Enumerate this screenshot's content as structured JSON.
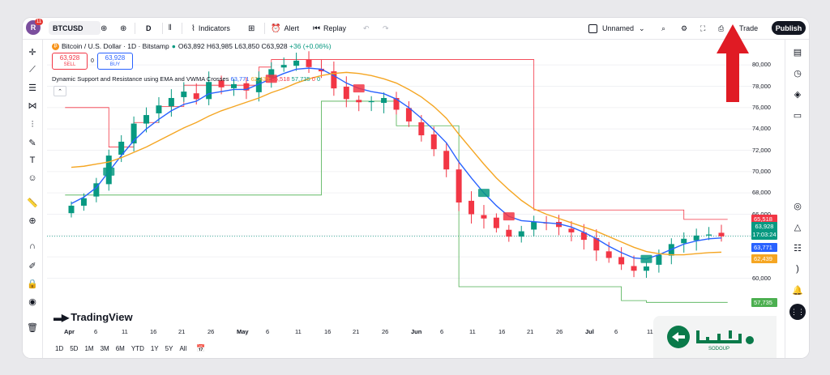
{
  "topbar": {
    "avatar_letter": "R",
    "avatar_badge": "11",
    "symbol": "BTCUSD",
    "interval": "D",
    "indicators_label": "Indicators",
    "alert_label": "Alert",
    "replay_label": "Replay",
    "layout_name": "Unnamed",
    "trade_label": "Trade",
    "publish_label": "Publish"
  },
  "legend": {
    "title": "Bitcoin / U.S. Dollar · 1D · Bitstamp",
    "open": "O63,892",
    "high": "H63,985",
    "low": "L63,850",
    "close": "C63,928",
    "change": "+36 (+0.06%)",
    "sell_price": "63,928",
    "sell_label": "SELL",
    "spread": "0",
    "buy_price": "63,928",
    "buy_label": "BUY"
  },
  "indicator": {
    "name": "Dynamic Support and Resistance using EMA and VWMA Crosses",
    "ema": "63,771",
    "vwma": "62,439",
    "resistance": "65,518",
    "support": "57,735",
    "v1": "0",
    "v2": "0"
  },
  "price_axis": {
    "labels": [
      "80,000",
      "78,000",
      "76,000",
      "74,000",
      "72,000",
      "70,000",
      "68,000",
      "66,000",
      "64,000",
      "62,000",
      "60,000"
    ],
    "tag_resistance": "65,518",
    "tag_price": "63,928",
    "tag_countdown": "17:03:24",
    "tag_ema": "63,771",
    "tag_vwma": "62,439",
    "tag_support": "57,735"
  },
  "time_axis": [
    {
      "label": "Apr",
      "month": true
    },
    {
      "label": "6"
    },
    {
      "label": "11"
    },
    {
      "label": "16"
    },
    {
      "label": "21"
    },
    {
      "label": "26"
    },
    {
      "label": "May",
      "month": true
    },
    {
      "label": "6"
    },
    {
      "label": "11"
    },
    {
      "label": "16"
    },
    {
      "label": "21"
    },
    {
      "label": "26"
    },
    {
      "label": "Jun",
      "month": true
    },
    {
      "label": "6"
    },
    {
      "label": "11"
    },
    {
      "label": "16"
    },
    {
      "label": "21"
    },
    {
      "label": "26"
    },
    {
      "label": "Jul",
      "month": true
    },
    {
      "label": "6"
    },
    {
      "label": "11"
    }
  ],
  "ranges": [
    "1D",
    "5D",
    "1M",
    "3M",
    "6M",
    "YTD",
    "1Y",
    "5Y",
    "All"
  ],
  "branding": {
    "logo_text": "TradingView",
    "watermark_text": "SODOUP"
  },
  "colors": {
    "up": "#089981",
    "down": "#f23645",
    "ema": "#2962ff",
    "vwma": "#f5a623",
    "support": "#4caf50",
    "resistance": "#f23645",
    "arrow": "#e01b24"
  },
  "chart_data": {
    "type": "candlestick",
    "symbol": "BTCUSD",
    "ylim": [
      57000,
      81000
    ],
    "dates": [
      "Apr 1",
      "Apr 3",
      "Apr 5",
      "Apr 7",
      "Apr 9",
      "Apr 11",
      "Apr 13",
      "Apr 15",
      "Apr 17",
      "Apr 19",
      "Apr 21",
      "Apr 23",
      "Apr 25",
      "Apr 27",
      "Apr 29",
      "May 1",
      "May 3",
      "May 5",
      "May 7",
      "May 9",
      "May 11",
      "May 13",
      "May 15",
      "May 17",
      "May 19",
      "May 21",
      "May 23",
      "May 25",
      "May 27",
      "May 29",
      "May 31",
      "Jun 2",
      "Jun 4",
      "Jun 6",
      "Jun 8",
      "Jun 10",
      "Jun 12",
      "Jun 14",
      "Jun 16",
      "Jun 18",
      "Jun 20",
      "Jun 22",
      "Jun 24",
      "Jun 26",
      "Jun 28",
      "Jun 30",
      "Jul 2",
      "Jul 4",
      "Jul 6",
      "Jul 8",
      "Jul 10",
      "Jul 12",
      "Jul 14"
    ],
    "close": [
      66800,
      67500,
      68900,
      71500,
      72800,
      74500,
      75300,
      76200,
      76900,
      77500,
      76800,
      78400,
      77900,
      78200,
      77600,
      78800,
      79600,
      80000,
      80400,
      79800,
      79400,
      77800,
      76800,
      76500,
      76600,
      76900,
      75800,
      74700,
      73400,
      72100,
      70200,
      67100,
      66000,
      65600,
      64700,
      63900,
      64400,
      65300,
      65200,
      64800,
      64300,
      63600,
      62600,
      61900,
      61300,
      60700,
      61100,
      62200,
      63200,
      63700,
      64000,
      64100,
      63928
    ],
    "series": [
      {
        "name": "EMA",
        "values": [
          67000,
          67600,
          68500,
          70000,
          71500,
          72900,
          74000,
          74900,
          75700,
          76300,
          76600,
          77300,
          77500,
          77700,
          77700,
          78200,
          78700,
          79200,
          79600,
          79700,
          79600,
          79000,
          78300,
          77800,
          77500,
          77300,
          76800,
          76000,
          75000,
          73900,
          72700,
          70900,
          69400,
          68000,
          66800,
          65800,
          65400,
          65300,
          65200,
          65100,
          64800,
          64300,
          63700,
          63000,
          62400,
          61900,
          61800,
          62200,
          62700,
          63200,
          63500,
          63700,
          63771
        ]
      },
      {
        "name": "VWMA",
        "values": [
          70400,
          70500,
          70700,
          70900,
          71300,
          71800,
          72300,
          72900,
          73500,
          74100,
          74600,
          75200,
          75700,
          76100,
          76500,
          76900,
          77400,
          77800,
          78300,
          78700,
          79000,
          79200,
          79300,
          79200,
          79000,
          78700,
          78300,
          77700,
          77000,
          76100,
          75000,
          73500,
          72100,
          70700,
          69400,
          68300,
          67300,
          66500,
          66000,
          65600,
          65200,
          64800,
          64400,
          63900,
          63400,
          62900,
          62500,
          62300,
          62200,
          62200,
          62300,
          62400,
          62439
        ]
      },
      {
        "name": "Resistance",
        "values": [
          76000,
          76000,
          76000,
          72300,
          72300,
          74600,
          74600,
          76100,
          76100,
          78100,
          78100,
          78100,
          78100,
          78100,
          78100,
          79800,
          80500,
          80500,
          80500,
          80500,
          80500,
          80500,
          80500,
          80500,
          80500,
          80500,
          80500,
          80500,
          80500,
          80500,
          80500,
          80500,
          80500,
          80500,
          80500,
          80500,
          80500,
          66400,
          66400,
          66400,
          66400,
          66400,
          66400,
          66400,
          66400,
          66400,
          66400,
          66400,
          66400,
          65518,
          65518,
          65518,
          65518
        ]
      },
      {
        "name": "Support",
        "values": [
          67800,
          67800,
          67800,
          67800,
          67800,
          67800,
          67800,
          67800,
          67800,
          67800,
          67800,
          67800,
          67800,
          67800,
          67800,
          67800,
          67800,
          67800,
          67800,
          67800,
          76600,
          76600,
          76600,
          76600,
          76600,
          76600,
          74300,
          74300,
          74300,
          74300,
          74300,
          59200,
          59200,
          59200,
          59200,
          59200,
          59200,
          59200,
          59200,
          59200,
          59200,
          59200,
          59200,
          59200,
          57900,
          57900,
          57735,
          57735,
          57735,
          57735,
          57735,
          57735,
          57735
        ]
      }
    ]
  }
}
